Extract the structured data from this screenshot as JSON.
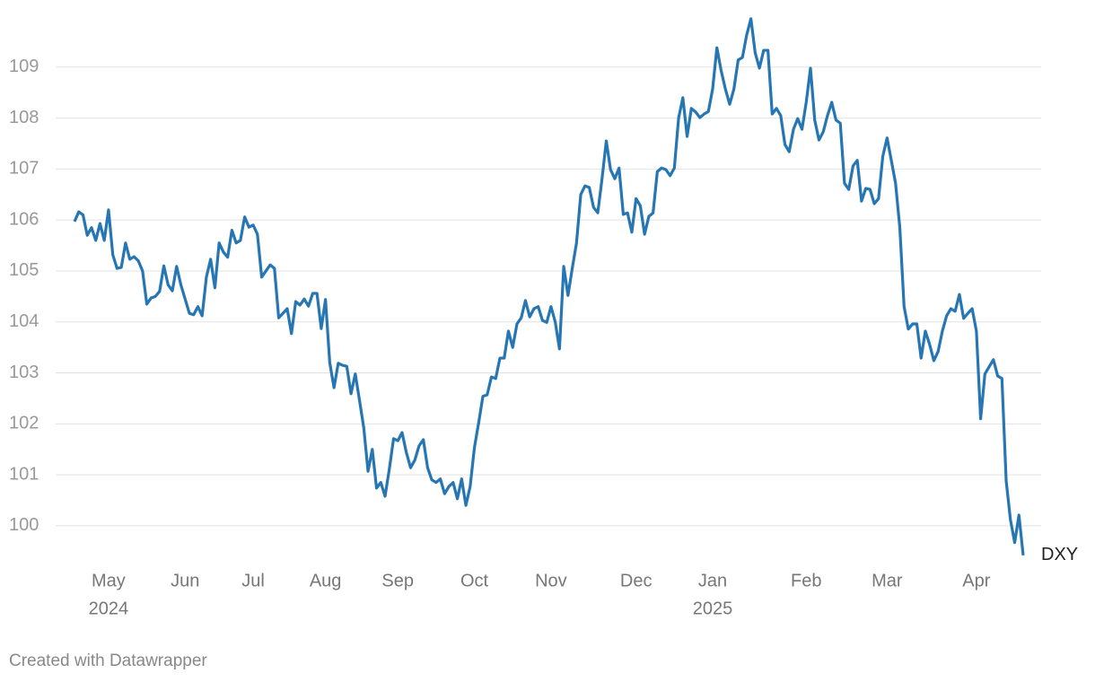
{
  "chart_data": {
    "type": "line",
    "footer": "Created with Datawrapper",
    "categories": [
      null,
      null,
      null,
      null,
      null,
      null,
      null,
      null,
      "May",
      null,
      null,
      null,
      null,
      null,
      null,
      null,
      null,
      null,
      null,
      null,
      null,
      null,
      null,
      null,
      null,
      null,
      "Jun",
      null,
      null,
      null,
      null,
      null,
      null,
      null,
      null,
      null,
      null,
      null,
      null,
      null,
      null,
      null,
      "Jul",
      null,
      null,
      null,
      null,
      null,
      null,
      null,
      null,
      null,
      null,
      null,
      null,
      null,
      null,
      null,
      null,
      "Aug",
      null,
      null,
      null,
      null,
      null,
      null,
      null,
      null,
      null,
      null,
      null,
      null,
      null,
      null,
      null,
      null,
      "Sep",
      null,
      null,
      null,
      null,
      null,
      null,
      null,
      null,
      null,
      null,
      null,
      null,
      null,
      null,
      null,
      null,
      null,
      "Oct",
      null,
      null,
      null,
      null,
      null,
      null,
      null,
      null,
      null,
      null,
      null,
      null,
      null,
      null,
      null,
      null,
      null,
      "Nov",
      null,
      null,
      null,
      null,
      null,
      null,
      null,
      null,
      null,
      null,
      null,
      null,
      null,
      null,
      null,
      null,
      null,
      null,
      null,
      "Dec",
      null,
      null,
      null,
      null,
      null,
      null,
      null,
      null,
      null,
      null,
      null,
      null,
      null,
      null,
      null,
      null,
      null,
      "Jan",
      null,
      null,
      null,
      null,
      null,
      null,
      null,
      null,
      null,
      null,
      null,
      null,
      null,
      null,
      null,
      null,
      null,
      null,
      null,
      null,
      null,
      "Feb",
      null,
      null,
      null,
      null,
      null,
      null,
      null,
      null,
      null,
      null,
      null,
      null,
      null,
      null,
      null,
      null,
      null,
      null,
      "Mar",
      null,
      null,
      null,
      null,
      null,
      null,
      null,
      null,
      null,
      null,
      null,
      null,
      null,
      null,
      null,
      null,
      null,
      null,
      null,
      null,
      "Apr",
      null,
      null,
      null,
      null,
      null,
      null,
      null,
      null,
      null,
      null,
      null
    ],
    "x_sublabels": [
      null,
      null,
      null,
      null,
      null,
      null,
      null,
      null,
      "2024",
      null,
      null,
      null,
      null,
      null,
      null,
      null,
      null,
      null,
      null,
      null,
      null,
      null,
      null,
      null,
      null,
      null,
      null,
      null,
      null,
      null,
      null,
      null,
      null,
      null,
      null,
      null,
      null,
      null,
      null,
      null,
      null,
      null,
      null,
      null,
      null,
      null,
      null,
      null,
      null,
      null,
      null,
      null,
      null,
      null,
      null,
      null,
      null,
      null,
      null,
      null,
      null,
      null,
      null,
      null,
      null,
      null,
      null,
      null,
      null,
      null,
      null,
      null,
      null,
      null,
      null,
      null,
      null,
      null,
      null,
      null,
      null,
      null,
      null,
      null,
      null,
      null,
      null,
      null,
      null,
      null,
      null,
      null,
      null,
      null,
      null,
      null,
      null,
      null,
      null,
      null,
      null,
      null,
      null,
      null,
      null,
      null,
      null,
      null,
      null,
      null,
      null,
      null,
      null,
      null,
      null,
      null,
      null,
      null,
      null,
      null,
      null,
      null,
      null,
      null,
      null,
      null,
      null,
      null,
      null,
      null,
      null,
      null,
      null,
      null,
      null,
      null,
      null,
      null,
      null,
      null,
      null,
      null,
      null,
      null,
      null,
      null,
      null,
      null,
      null,
      null,
      "2025",
      null,
      null,
      null,
      null,
      null,
      null,
      null,
      null,
      null,
      null,
      null,
      null,
      null,
      null,
      null,
      null,
      null,
      null,
      null,
      null,
      null,
      null,
      null,
      null,
      null,
      null,
      null,
      null,
      null,
      null,
      null,
      null,
      null,
      null,
      null,
      null,
      null,
      null,
      null,
      null,
      null,
      null,
      null,
      null,
      null,
      null,
      null,
      null,
      null,
      null,
      null,
      null,
      null,
      null,
      null,
      null,
      null,
      null,
      null,
      null,
      null,
      null,
      null,
      null,
      null,
      null,
      null,
      null,
      null,
      null,
      null,
      null,
      null
    ],
    "series": [
      {
        "name": "DXY",
        "color": "#2776b4",
        "values": [
          105.97,
          106.16,
          106.1,
          105.7,
          105.85,
          105.6,
          105.93,
          105.6,
          106.2,
          105.32,
          105.05,
          105.07,
          105.55,
          105.23,
          105.28,
          105.2,
          105.0,
          104.35,
          104.47,
          104.5,
          104.6,
          105.1,
          104.73,
          104.61,
          105.09,
          104.73,
          104.45,
          104.17,
          104.14,
          104.3,
          104.12,
          104.88,
          105.23,
          104.67,
          105.55,
          105.37,
          105.27,
          105.8,
          105.55,
          105.6,
          106.06,
          105.86,
          105.9,
          105.72,
          104.88,
          105.0,
          105.12,
          105.05,
          104.08,
          104.17,
          104.26,
          103.77,
          104.4,
          104.33,
          104.45,
          104.31,
          104.56,
          104.56,
          103.87,
          104.44,
          103.2,
          102.71,
          103.19,
          103.15,
          103.13,
          102.59,
          102.98,
          102.46,
          101.92,
          101.07,
          101.5,
          100.74,
          100.85,
          100.58,
          101.11,
          101.71,
          101.67,
          101.83,
          101.44,
          101.14,
          101.29,
          101.57,
          101.69,
          101.14,
          100.9,
          100.85,
          100.92,
          100.63,
          100.77,
          100.85,
          100.53,
          100.92,
          100.4,
          100.77,
          101.53,
          102.02,
          102.54,
          102.57,
          102.92,
          102.89,
          103.29,
          103.29,
          103.82,
          103.5,
          103.96,
          104.08,
          104.42,
          104.1,
          104.26,
          104.3,
          104.03,
          103.99,
          104.3,
          104.0,
          103.47,
          105.09,
          104.52,
          105.05,
          105.55,
          106.5,
          106.67,
          106.64,
          106.25,
          106.14,
          106.81,
          107.55,
          106.99,
          106.81,
          107.02,
          106.11,
          106.14,
          105.76,
          106.42,
          106.28,
          105.72,
          106.07,
          106.14,
          106.95,
          107.02,
          106.99,
          106.87,
          107.02,
          108.0,
          108.4,
          107.64,
          108.19,
          108.12,
          108.01,
          108.08,
          108.13,
          108.57,
          109.38,
          108.93,
          108.57,
          108.27,
          108.57,
          109.14,
          109.19,
          109.63,
          109.95,
          109.28,
          108.98,
          109.33,
          109.33,
          108.08,
          108.19,
          108.05,
          107.48,
          107.34,
          107.78,
          107.99,
          107.78,
          108.31,
          108.98,
          107.96,
          107.57,
          107.73,
          108.05,
          108.31,
          107.96,
          107.9,
          106.72,
          106.6,
          107.06,
          107.17,
          106.37,
          106.62,
          106.6,
          106.32,
          106.42,
          107.25,
          107.61,
          107.17,
          106.72,
          105.85,
          104.3,
          103.86,
          103.96,
          103.96,
          103.29,
          103.82,
          103.56,
          103.24,
          103.42,
          103.82,
          104.12,
          104.26,
          104.21,
          104.54,
          104.07,
          104.17,
          104.26,
          103.82,
          102.1,
          102.98,
          103.12,
          103.26,
          102.94,
          102.89,
          100.88,
          100.12,
          99.67,
          100.21,
          99.42
        ]
      }
    ],
    "ylim": [
      99.4,
      110
    ],
    "yticks": [
      100,
      101,
      102,
      103,
      104,
      105,
      106,
      107,
      108,
      109
    ],
    "grid": true
  }
}
